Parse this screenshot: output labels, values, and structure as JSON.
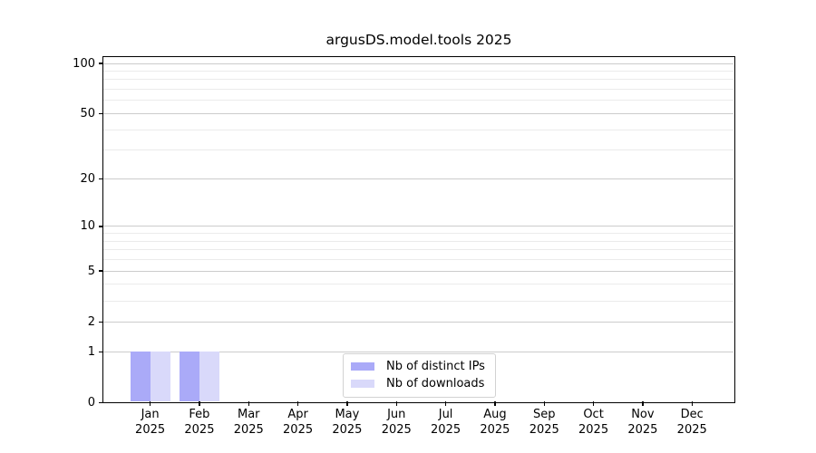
{
  "chart": {
    "background_color": "#ffffff",
    "axis_color": "#000000",
    "major_grid_color": "#cccccc",
    "minor_grid_color": "#ebebeb",
    "legend_border_color": "#d2d2d2"
  },
  "chart_data": {
    "type": "bar",
    "title": "argusDS.model.tools 2025",
    "categories": [
      "Jan 2025",
      "Feb 2025",
      "Mar 2025",
      "Apr 2025",
      "May 2025",
      "Jun 2025",
      "Jul 2025",
      "Aug 2025",
      "Sep 2025",
      "Oct 2025",
      "Nov 2025",
      "Dec 2025"
    ],
    "series": [
      {
        "name": "Nb of distinct IPs",
        "color": "#aaaaf8",
        "values": [
          1,
          1,
          0,
          0,
          0,
          0,
          0,
          0,
          0,
          0,
          0,
          0
        ]
      },
      {
        "name": "Nb of downloads",
        "color": "#d9d9fa",
        "values": [
          1,
          1,
          0,
          0,
          0,
          0,
          0,
          0,
          0,
          0,
          0,
          0
        ]
      }
    ],
    "xlabel": "",
    "ylabel": "",
    "yscale": "log1p",
    "ylim": [
      0,
      110
    ],
    "y_major_ticks": [
      0,
      1,
      2,
      5,
      10,
      20,
      50,
      100
    ],
    "y_minor_gridlines": [
      3,
      4,
      6,
      7,
      8,
      9,
      30,
      40,
      60,
      70,
      80,
      90
    ],
    "grid": true,
    "legend_position": "lower center"
  }
}
